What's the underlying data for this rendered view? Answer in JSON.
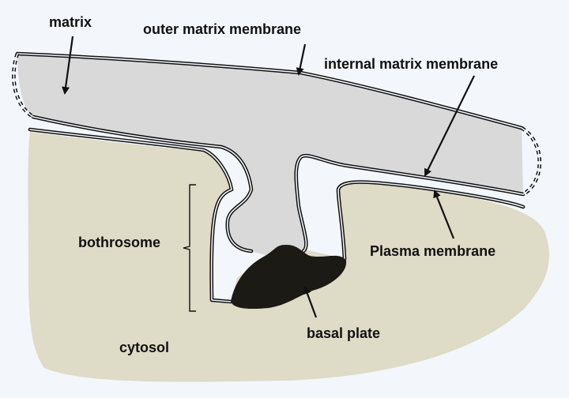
{
  "labels": {
    "matrix": "matrix",
    "outer_matrix_membrane": "outer matrix membrane",
    "internal_matrix_membrane": "internal matrix membrane",
    "bothrosome": "bothrosome",
    "plasma_membrane": "Plasma membrane",
    "basal_plate": "basal plate",
    "cytosol": "cytosol"
  },
  "colors": {
    "background": "#f3f6fb",
    "matrix_fill": "#d9d9d9",
    "cytosol_fill": "#dedbc6",
    "membrane_stroke": "#111111",
    "basal_plate_fill": "#1c1a14"
  }
}
